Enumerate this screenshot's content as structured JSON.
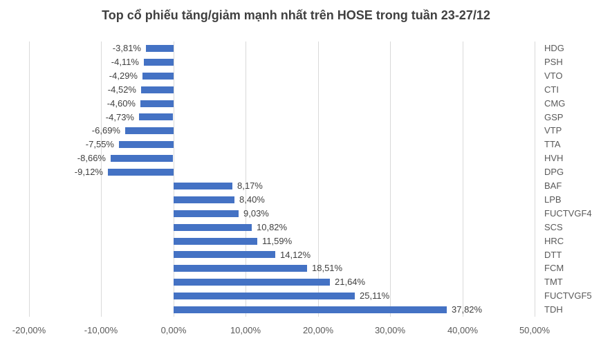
{
  "chart_data": {
    "type": "bar",
    "orientation": "horizontal",
    "title": "Top cổ phiếu tăng/giảm mạnh nhất trên HOSE trong tuần 23-27/12",
    "xlabel": "",
    "ylabel": "",
    "xlim": [
      -20,
      50
    ],
    "grid": "vertical",
    "legend": "none",
    "bar_color": "#4472C4",
    "gridline_color": "#D9D9D9",
    "title_color": "#404040",
    "label_color": "#404040",
    "axis_text_color": "#595959",
    "items": [
      {
        "label": "HDG",
        "value": -3.81,
        "display": "-3,81%"
      },
      {
        "label": "PSH",
        "value": -4.11,
        "display": "-4,11%"
      },
      {
        "label": "VTO",
        "value": -4.29,
        "display": "-4,29%"
      },
      {
        "label": "CTI",
        "value": -4.52,
        "display": "-4,52%"
      },
      {
        "label": "CMG",
        "value": -4.6,
        "display": "-4,60%"
      },
      {
        "label": "GSP",
        "value": -4.73,
        "display": "-4,73%"
      },
      {
        "label": "VTP",
        "value": -6.69,
        "display": "-6,69%"
      },
      {
        "label": "TTA",
        "value": -7.55,
        "display": "-7,55%"
      },
      {
        "label": "HVH",
        "value": -8.66,
        "display": "-8,66%"
      },
      {
        "label": "DPG",
        "value": -9.12,
        "display": "-9,12%"
      },
      {
        "label": "BAF",
        "value": 8.17,
        "display": "8,17%"
      },
      {
        "label": "LPB",
        "value": 8.4,
        "display": "8,40%"
      },
      {
        "label": "FUCTVGF4",
        "value": 9.03,
        "display": "9,03%"
      },
      {
        "label": "SCS",
        "value": 10.82,
        "display": "10,82%"
      },
      {
        "label": "HRC",
        "value": 11.59,
        "display": "11,59%"
      },
      {
        "label": "DTT",
        "value": 14.12,
        "display": "14,12%"
      },
      {
        "label": "FCM",
        "value": 18.51,
        "display": "18,51%"
      },
      {
        "label": "TMT",
        "value": 21.64,
        "display": "21,64%"
      },
      {
        "label": "FUCTVGF5",
        "value": 25.11,
        "display": "25,11%"
      },
      {
        "label": "TDH",
        "value": 37.82,
        "display": "37,82%"
      }
    ],
    "x_ticks": [
      {
        "value": -20,
        "label": "-20,00%"
      },
      {
        "value": -10,
        "label": "-10,00%"
      },
      {
        "value": 0,
        "label": "0,00%"
      },
      {
        "value": 10,
        "label": "10,00%"
      },
      {
        "value": 20,
        "label": "20,00%"
      },
      {
        "value": 30,
        "label": "30,00%"
      },
      {
        "value": 40,
        "label": "40,00%"
      },
      {
        "value": 50,
        "label": "50,00%"
      }
    ]
  }
}
